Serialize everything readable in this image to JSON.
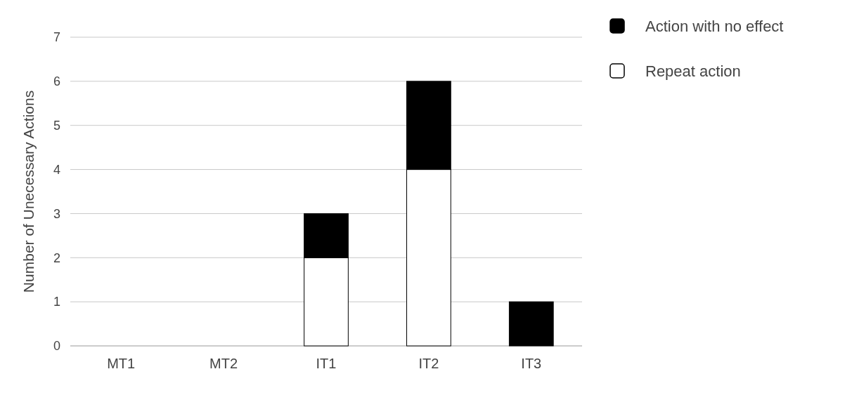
{
  "chart_data": {
    "type": "bar",
    "stacked": true,
    "ylabel": "Number of Unecessary Actions",
    "categories": [
      "MT1",
      "MT2",
      "IT1",
      "IT2",
      "IT3"
    ],
    "series": [
      {
        "name": "Repeat action",
        "color": "#ffffff",
        "values": [
          0,
          0,
          2,
          4,
          0
        ]
      },
      {
        "name": "Action with no effect",
        "color": "#000000",
        "values": [
          0,
          0,
          1,
          2,
          1
        ]
      }
    ],
    "ylim": [
      0,
      7
    ],
    "yticks": [
      0,
      1,
      2,
      3,
      4,
      5,
      6,
      7
    ],
    "grid": "y",
    "legend": "top right"
  }
}
